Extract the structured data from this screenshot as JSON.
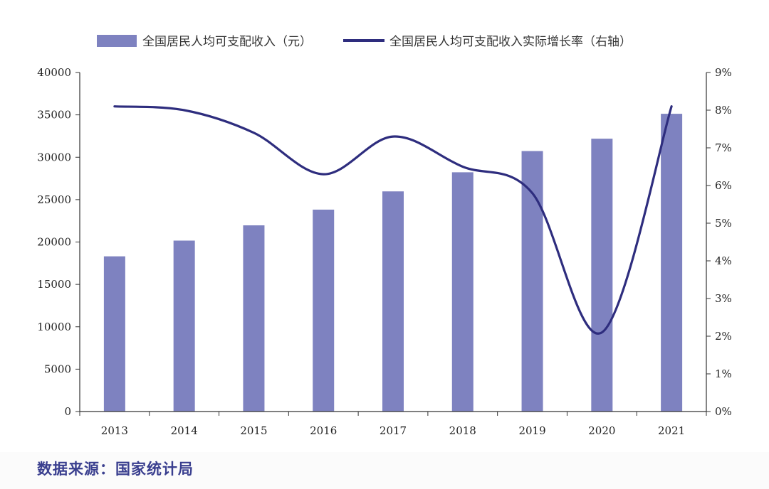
{
  "chart_data": {
    "type": "bar+line",
    "categories": [
      "2013",
      "2014",
      "2015",
      "2016",
      "2017",
      "2018",
      "2019",
      "2020",
      "2021"
    ],
    "series": [
      {
        "name": "全国居民人均可支配收入（元）",
        "type": "bar",
        "axis": "left",
        "color": "#7e82c0",
        "values": [
          18311,
          20167,
          21966,
          23821,
          25974,
          28228,
          30733,
          32189,
          35128
        ]
      },
      {
        "name": "全国居民人均可支配收入实际增长率（右轴）",
        "type": "line",
        "axis": "right",
        "color": "#2e2d7e",
        "values": [
          8.1,
          8.0,
          7.4,
          6.3,
          7.3,
          6.5,
          5.8,
          2.1,
          8.1
        ]
      }
    ],
    "y_left": {
      "range": [
        0,
        40000
      ],
      "ticks": [
        "0",
        "5000",
        "10000",
        "15000",
        "20000",
        "25000",
        "30000",
        "35000",
        "40000"
      ]
    },
    "y_right": {
      "range": [
        0,
        9
      ],
      "ticks": [
        "0%",
        "1%",
        "2%",
        "3%",
        "4%",
        "5%",
        "6%",
        "7%",
        "8%",
        "9%"
      ]
    },
    "legend_position": "top",
    "grid": false
  },
  "source_text": "数据来源：国家统计局"
}
